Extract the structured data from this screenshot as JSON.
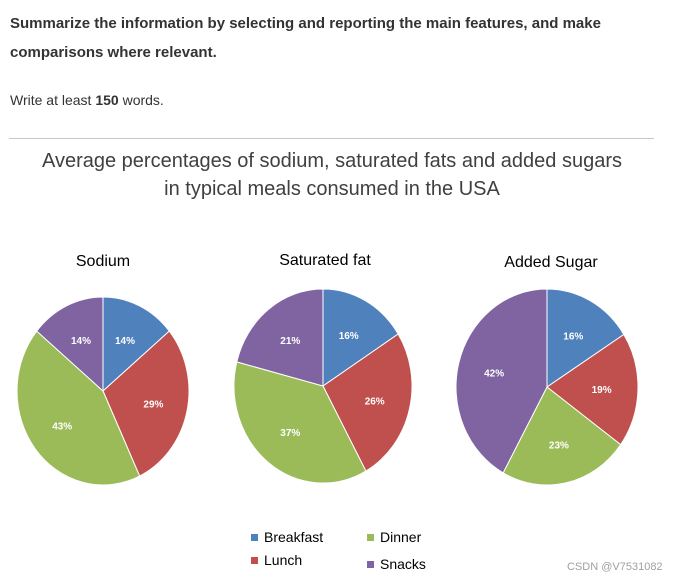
{
  "prompt": {
    "instruction": "Summarize the information by selecting and reporting the main features, and make comparisons where relevant.",
    "words_prefix": "Write at least",
    "words_count": "150",
    "words_suffix": "words."
  },
  "watermark": "CSDN @V7531082",
  "chart_data": {
    "type": "pie",
    "title_line1": "Average percentages of sodium, saturated fats and added sugars",
    "title_line2": "in typical meals consumed in the USA",
    "categories": [
      "Breakfast",
      "Lunch",
      "Dinner",
      "Snacks"
    ],
    "colors": {
      "Breakfast": "#4f81bd",
      "Lunch": "#c0504d",
      "Dinner": "#9bbb59",
      "Snacks": "#8064a2"
    },
    "legend": {
      "placement": "bottom",
      "entries": [
        "Breakfast",
        "Lunch",
        "Dinner",
        "Snacks"
      ]
    },
    "pies": [
      {
        "title": "Sodium",
        "values": [
          14,
          29,
          43,
          14
        ],
        "labels": [
          "14%",
          "29%",
          "43%",
          "14%"
        ]
      },
      {
        "title": "Saturated fat",
        "values": [
          16,
          26,
          37,
          21
        ],
        "labels": [
          "16%",
          "26%",
          "37%",
          "21%"
        ]
      },
      {
        "title": "Added Sugar",
        "values": [
          16,
          19,
          23,
          42
        ],
        "labels": [
          "16%",
          "19%",
          "23%",
          "42%"
        ]
      }
    ]
  }
}
